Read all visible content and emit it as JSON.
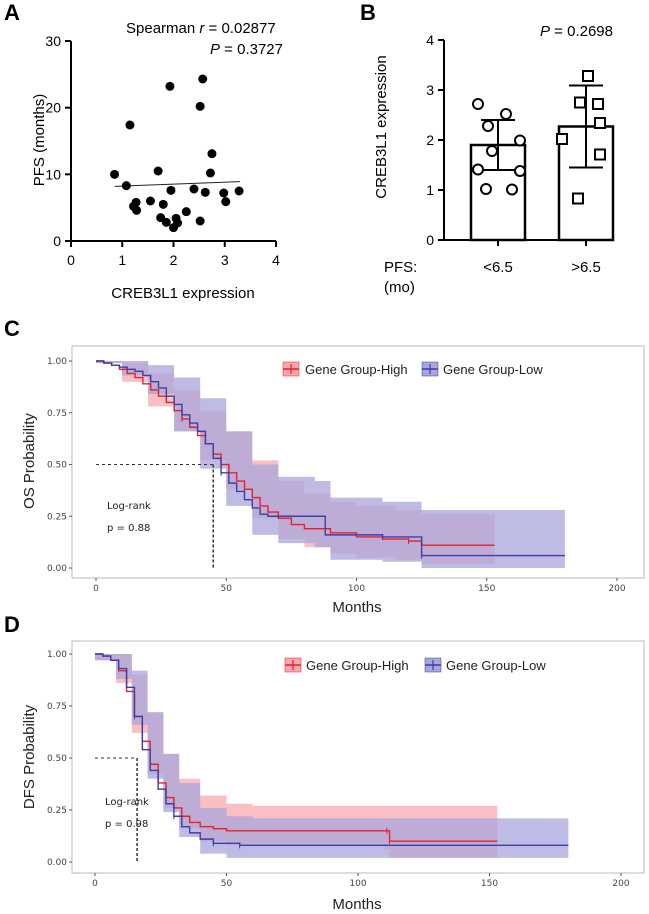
{
  "colors": {
    "high": "#e8202a",
    "high_band": "#f7a9ad",
    "low": "#3c3fa6",
    "low_band": "#a8a6dc"
  },
  "panels": {
    "a": "A",
    "b": "B",
    "c": "C",
    "d": "D"
  },
  "chart_data": [
    {
      "id": "A",
      "type": "scatter",
      "xlabel": "CREB3L1 expression",
      "ylabel": "PFS (months)",
      "xlim": [
        0,
        4
      ],
      "ylim": [
        0,
        30
      ],
      "xticks": [
        "0",
        "1",
        "2",
        "3",
        "4"
      ],
      "yticks": [
        "0",
        "10",
        "20",
        "30"
      ],
      "annotation": {
        "prefix": "Spearman ",
        "r_symbol": "r",
        "r_value": " = 0.02877",
        "p_symbol": "P",
        "p_value": " = 0.3727"
      },
      "points": [
        [
          0.85,
          10.0
        ],
        [
          1.08,
          8.3
        ],
        [
          1.15,
          17.4
        ],
        [
          1.22,
          5.2
        ],
        [
          1.27,
          5.8
        ],
        [
          1.28,
          4.6
        ],
        [
          1.55,
          6.0
        ],
        [
          1.7,
          10.5
        ],
        [
          1.75,
          3.5
        ],
        [
          1.8,
          5.5
        ],
        [
          1.86,
          2.8
        ],
        [
          1.93,
          23.2
        ],
        [
          1.95,
          7.6
        ],
        [
          2.0,
          2.0
        ],
        [
          2.05,
          3.4
        ],
        [
          2.08,
          2.7
        ],
        [
          2.25,
          4.4
        ],
        [
          2.4,
          7.8
        ],
        [
          2.52,
          20.2
        ],
        [
          2.57,
          24.3
        ],
        [
          2.52,
          3.0
        ],
        [
          2.62,
          7.3
        ],
        [
          2.75,
          13.1
        ],
        [
          2.72,
          10.2
        ],
        [
          2.98,
          7.2
        ],
        [
          3.02,
          5.9
        ],
        [
          3.28,
          7.5
        ]
      ],
      "trend_line": [
        [
          0.85,
          8.2
        ],
        [
          3.3,
          8.9
        ]
      ]
    },
    {
      "id": "B",
      "type": "bar",
      "ylabel": "CREB3L1 expression",
      "xlabel_prefix": "PFS:",
      "xlabel_unit": "(mo)",
      "categories": [
        "<6.5",
        ">6.5"
      ],
      "values": [
        1.9,
        2.27
      ],
      "errors": [
        0.5,
        0.82
      ],
      "ylim": [
        0,
        4
      ],
      "yticks": [
        "0",
        "1",
        "2",
        "3",
        "4"
      ],
      "annotation": {
        "p_symbol": "P",
        "p_value": " = 0.2698"
      },
      "points": {
        "<6.5": [
          2.72,
          2.52,
          2.28,
          1.99,
          1.78,
          1.41,
          1.38,
          1.02,
          1.01
        ],
        ">6.5": [
          3.28,
          2.75,
          2.72,
          2.34,
          2.02,
          1.71,
          0.83
        ]
      }
    },
    {
      "id": "C",
      "type": "line",
      "subtype": "kaplan-meier",
      "xlabel": "Months",
      "ylabel": "OS Probability",
      "xlim": [
        0,
        200
      ],
      "ylim": [
        0,
        1
      ],
      "xticks": [
        "0",
        "50",
        "100",
        "150",
        "200"
      ],
      "yticks": [
        "0.00",
        "0.25",
        "0.50",
        "0.75",
        "1.00"
      ],
      "median_line": {
        "y": 0.5,
        "x": 45
      },
      "annotation": {
        "test": "Log-rank",
        "p": "p = 0.88"
      },
      "series": [
        {
          "name": "Gene Group-High",
          "values": [
            [
              0,
              1.0
            ],
            [
              3,
              0.99
            ],
            [
              6,
              0.98
            ],
            [
              9,
              0.96
            ],
            [
              12,
              0.94
            ],
            [
              15,
              0.92
            ],
            [
              18,
              0.89
            ],
            [
              21,
              0.86
            ],
            [
              24,
              0.83
            ],
            [
              27,
              0.8
            ],
            [
              30,
              0.76
            ],
            [
              33,
              0.72
            ],
            [
              36,
              0.68
            ],
            [
              39,
              0.64
            ],
            [
              42,
              0.6
            ],
            [
              45,
              0.55
            ],
            [
              48,
              0.5
            ],
            [
              51,
              0.46
            ],
            [
              54,
              0.42
            ],
            [
              57,
              0.38
            ],
            [
              60,
              0.34
            ],
            [
              63,
              0.3
            ],
            [
              66,
              0.27
            ],
            [
              70,
              0.24
            ],
            [
              75,
              0.21
            ],
            [
              80,
              0.19
            ],
            [
              90,
              0.17
            ],
            [
              100,
              0.15
            ],
            [
              110,
              0.14
            ],
            [
              120,
              0.13
            ],
            [
              125,
              0.11
            ],
            [
              153,
              0.11
            ]
          ],
          "band_upper": [
            [
              0,
              1.0
            ],
            [
              10,
              0.99
            ],
            [
              20,
              0.94
            ],
            [
              30,
              0.86
            ],
            [
              40,
              0.76
            ],
            [
              50,
              0.66
            ],
            [
              60,
              0.52
            ],
            [
              70,
              0.42
            ],
            [
              80,
              0.36
            ],
            [
              90,
              0.32
            ],
            [
              100,
              0.3
            ],
            [
              115,
              0.28
            ],
            [
              125,
              0.26
            ],
            [
              153,
              0.26
            ]
          ],
          "band_lower": [
            [
              0,
              0.99
            ],
            [
              10,
              0.9
            ],
            [
              20,
              0.78
            ],
            [
              30,
              0.66
            ],
            [
              40,
              0.52
            ],
            [
              50,
              0.38
            ],
            [
              60,
              0.24
            ],
            [
              70,
              0.14
            ],
            [
              80,
              0.1
            ],
            [
              90,
              0.07
            ],
            [
              100,
              0.05
            ],
            [
              115,
              0.04
            ],
            [
              125,
              0.02
            ],
            [
              153,
              0.02
            ]
          ]
        },
        {
          "name": "Gene Group-Low",
          "values": [
            [
              0,
              1.0
            ],
            [
              3,
              0.99
            ],
            [
              6,
              0.98
            ],
            [
              9,
              0.97
            ],
            [
              12,
              0.96
            ],
            [
              15,
              0.95
            ],
            [
              18,
              0.93
            ],
            [
              21,
              0.9
            ],
            [
              24,
              0.87
            ],
            [
              27,
              0.83
            ],
            [
              30,
              0.79
            ],
            [
              33,
              0.74
            ],
            [
              36,
              0.7
            ],
            [
              39,
              0.66
            ],
            [
              42,
              0.6
            ],
            [
              45,
              0.53
            ],
            [
              48,
              0.46
            ],
            [
              51,
              0.41
            ],
            [
              54,
              0.37
            ],
            [
              57,
              0.33
            ],
            [
              60,
              0.29
            ],
            [
              63,
              0.26
            ],
            [
              66,
              0.25
            ],
            [
              84,
              0.25
            ],
            [
              88,
              0.16
            ],
            [
              110,
              0.15
            ],
            [
              125,
              0.06
            ],
            [
              180,
              0.06
            ]
          ],
          "band_upper": [
            [
              0,
              1.0
            ],
            [
              10,
              1.0
            ],
            [
              20,
              0.98
            ],
            [
              30,
              0.92
            ],
            [
              40,
              0.82
            ],
            [
              50,
              0.66
            ],
            [
              60,
              0.5
            ],
            [
              70,
              0.44
            ],
            [
              84,
              0.42
            ],
            [
              90,
              0.34
            ],
            [
              110,
              0.32
            ],
            [
              125,
              0.28
            ],
            [
              180,
              0.28
            ]
          ],
          "band_lower": [
            [
              0,
              0.99
            ],
            [
              10,
              0.93
            ],
            [
              20,
              0.84
            ],
            [
              30,
              0.66
            ],
            [
              40,
              0.48
            ],
            [
              50,
              0.3
            ],
            [
              60,
              0.16
            ],
            [
              70,
              0.12
            ],
            [
              84,
              0.1
            ],
            [
              90,
              0.04
            ],
            [
              110,
              0.03
            ],
            [
              125,
              0.0
            ],
            [
              180,
              0.0
            ]
          ]
        }
      ]
    },
    {
      "id": "D",
      "type": "line",
      "subtype": "kaplan-meier",
      "xlabel": "Months",
      "ylabel": "DFS Probability",
      "xlim": [
        0,
        200
      ],
      "ylim": [
        0,
        1
      ],
      "xticks": [
        "0",
        "50",
        "100",
        "150",
        "200"
      ],
      "yticks": [
        "0.00",
        "0.25",
        "0.50",
        "0.75",
        "1.00"
      ],
      "median_line": {
        "y": 0.5,
        "x": 16
      },
      "annotation": {
        "test": "Log-rank",
        "p": "p = 0.98"
      },
      "series": [
        {
          "name": "Gene Group-High",
          "values": [
            [
              0,
              1.0
            ],
            [
              3,
              0.99
            ],
            [
              6,
              0.97
            ],
            [
              9,
              0.92
            ],
            [
              12,
              0.82
            ],
            [
              15,
              0.7
            ],
            [
              18,
              0.58
            ],
            [
              21,
              0.47
            ],
            [
              24,
              0.38
            ],
            [
              27,
              0.31
            ],
            [
              30,
              0.26
            ],
            [
              33,
              0.22
            ],
            [
              36,
              0.19
            ],
            [
              40,
              0.17
            ],
            [
              45,
              0.16
            ],
            [
              50,
              0.15
            ],
            [
              111,
              0.15
            ],
            [
              112,
              0.1
            ],
            [
              153,
              0.1
            ]
          ],
          "band_upper": [
            [
              0,
              1.0
            ],
            [
              8,
              1.0
            ],
            [
              14,
              0.9
            ],
            [
              20,
              0.72
            ],
            [
              26,
              0.52
            ],
            [
              32,
              0.4
            ],
            [
              40,
              0.32
            ],
            [
              50,
              0.28
            ],
            [
              60,
              0.27
            ],
            [
              153,
              0.27
            ]
          ],
          "band_lower": [
            [
              0,
              0.97
            ],
            [
              8,
              0.86
            ],
            [
              14,
              0.62
            ],
            [
              20,
              0.42
            ],
            [
              26,
              0.26
            ],
            [
              32,
              0.16
            ],
            [
              40,
              0.1
            ],
            [
              50,
              0.08
            ],
            [
              110,
              0.06
            ],
            [
              112,
              0.02
            ],
            [
              153,
              0.02
            ]
          ]
        },
        {
          "name": "Gene Group-Low",
          "values": [
            [
              0,
              1.0
            ],
            [
              3,
              0.99
            ],
            [
              6,
              0.97
            ],
            [
              9,
              0.93
            ],
            [
              12,
              0.84
            ],
            [
              15,
              0.7
            ],
            [
              18,
              0.54
            ],
            [
              21,
              0.44
            ],
            [
              24,
              0.35
            ],
            [
              27,
              0.28
            ],
            [
              30,
              0.22
            ],
            [
              33,
              0.17
            ],
            [
              36,
              0.14
            ],
            [
              40,
              0.11
            ],
            [
              45,
              0.09
            ],
            [
              55,
              0.08
            ],
            [
              180,
              0.08
            ]
          ],
          "band_upper": [
            [
              0,
              1.0
            ],
            [
              8,
              1.0
            ],
            [
              14,
              0.92
            ],
            [
              20,
              0.72
            ],
            [
              26,
              0.52
            ],
            [
              32,
              0.38
            ],
            [
              40,
              0.26
            ],
            [
              50,
              0.22
            ],
            [
              60,
              0.21
            ],
            [
              180,
              0.21
            ]
          ],
          "band_lower": [
            [
              0,
              0.97
            ],
            [
              8,
              0.88
            ],
            [
              14,
              0.66
            ],
            [
              20,
              0.4
            ],
            [
              26,
              0.24
            ],
            [
              32,
              0.12
            ],
            [
              40,
              0.04
            ],
            [
              50,
              0.02
            ],
            [
              60,
              0.02
            ],
            [
              180,
              0.02
            ]
          ]
        }
      ]
    }
  ]
}
